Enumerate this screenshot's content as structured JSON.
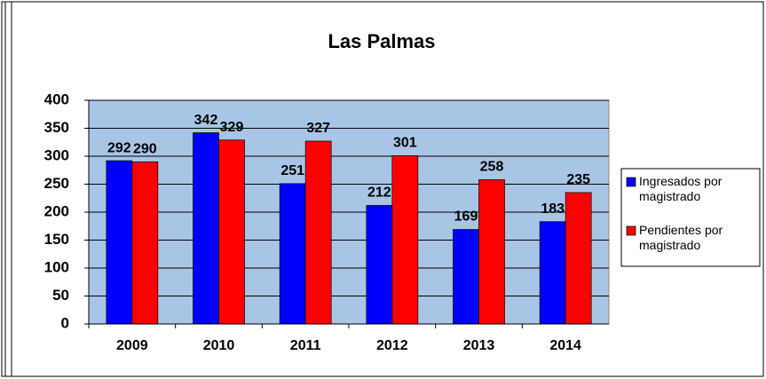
{
  "chart_data": {
    "type": "bar",
    "title": "Las Palmas",
    "categories": [
      "2009",
      "2010",
      "2011",
      "2012",
      "2013",
      "2014"
    ],
    "series": [
      {
        "name": "Ingresados por magistrado",
        "color": "#0000ff",
        "values": [
          292,
          342,
          251,
          212,
          169,
          183
        ]
      },
      {
        "name": "Pendientes por magistrado",
        "color": "#ff0000",
        "values": [
          290,
          329,
          327,
          301,
          258,
          235
        ]
      }
    ],
    "ylim": [
      0,
      400
    ],
    "yticks": [
      0,
      50,
      100,
      150,
      200,
      250,
      300,
      350,
      400
    ],
    "grid": true,
    "legend": "right"
  }
}
